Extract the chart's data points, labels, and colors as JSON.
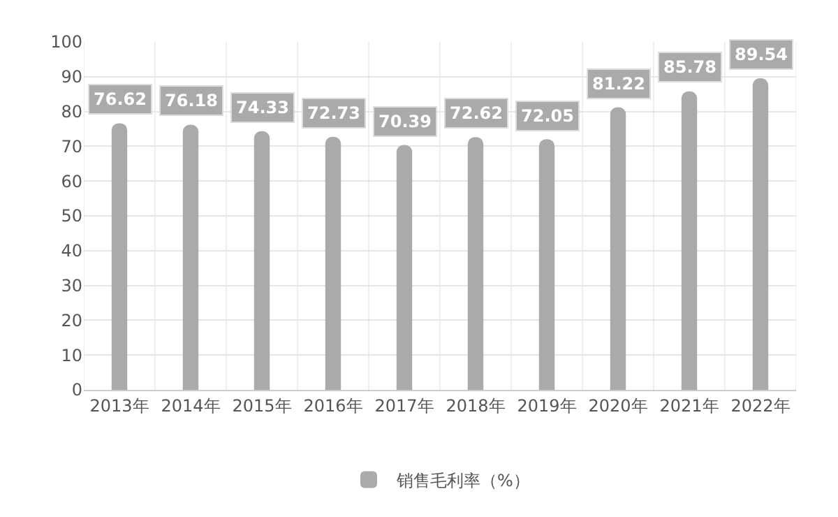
{
  "chart_data": {
    "type": "bar",
    "categories": [
      "2013年",
      "2014年",
      "2015年",
      "2016年",
      "2017年",
      "2018年",
      "2019年",
      "2020年",
      "2021年",
      "2022年"
    ],
    "series": [
      {
        "name": "销售毛利率（%）",
        "color": "#aaaaaa",
        "values": [
          76.62,
          76.18,
          74.33,
          72.73,
          70.39,
          72.62,
          72.05,
          81.22,
          85.78,
          89.54
        ]
      }
    ],
    "ylim": [
      0,
      100
    ],
    "yticks": [
      0,
      10,
      20,
      30,
      40,
      50,
      60,
      70,
      80,
      90,
      100
    ],
    "grid": true,
    "legend": "bottom",
    "data_labels": true
  }
}
